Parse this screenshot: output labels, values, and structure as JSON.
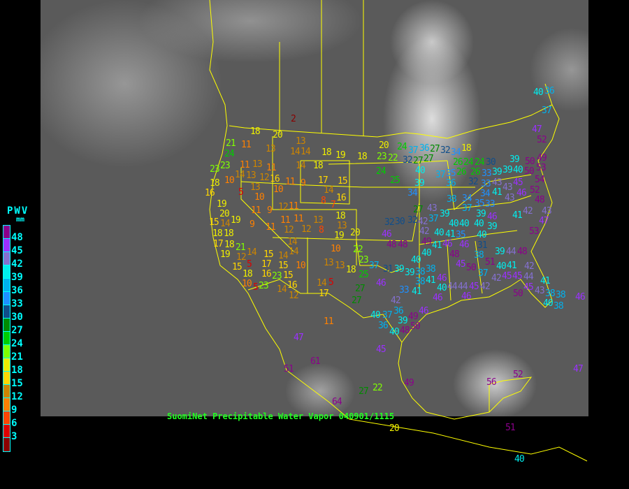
{
  "caption": "SuomiNet Precipitable Water Vapor 040901/1115",
  "legend": {
    "title": "PWV",
    "units": "mm",
    "labels": [
      "48",
      "45",
      "42",
      "39",
      "36",
      "33",
      "30",
      "27",
      "24",
      "21",
      "18",
      "15",
      "12",
      "9",
      "6",
      "3"
    ],
    "colors": [
      "#8b008b",
      "#9b30ff",
      "#8470d0",
      "#00eeee",
      "#00b2ee",
      "#1e90ff",
      "#104e8b",
      "#008b00",
      "#00cd00",
      "#7fff00",
      "#eeee00",
      "#ffd700",
      "#cd8500",
      "#ff8000",
      "#ff4500",
      "#dd0000",
      "#8b0000"
    ]
  },
  "map": {
    "background": "grayscale IR satellite",
    "overlay_line_color": "#ffff00"
  },
  "stations": [
    2,
    18,
    20,
    21,
    24,
    23,
    11,
    13,
    13,
    14,
    14,
    18,
    19,
    18,
    11,
    13,
    14,
    11,
    14,
    18,
    23,
    13,
    12,
    13,
    16,
    10,
    11,
    9,
    17,
    15,
    18,
    16,
    10,
    5,
    10,
    14,
    8,
    7,
    16,
    18,
    13,
    19,
    20,
    15,
    14,
    19,
    18,
    18,
    17,
    18,
    19,
    21,
    12,
    14,
    11,
    9,
    9,
    11,
    11,
    11,
    12,
    11,
    13,
    8,
    19,
    20,
    12,
    12,
    14,
    14,
    15,
    14,
    17,
    15,
    5,
    16,
    15,
    15,
    10,
    18,
    10,
    5,
    23,
    23,
    16,
    14,
    12,
    14,
    5,
    17,
    10,
    13,
    13,
    18,
    22,
    23,
    25,
    27,
    27,
    11,
    47,
    51,
    61,
    64,
    27,
    22,
    45,
    49,
    20,
    56,
    52,
    51,
    40,
    47,
    20,
    23,
    22,
    24,
    37,
    36,
    27,
    27,
    32,
    27,
    24,
    25,
    40,
    39,
    34,
    32,
    34,
    18,
    26,
    24,
    24,
    30,
    26,
    26,
    33,
    37,
    35,
    32,
    33,
    39,
    39,
    40,
    39,
    34,
    36,
    38,
    34,
    37,
    35,
    33,
    41,
    43,
    43,
    45,
    50,
    50,
    53,
    54,
    52,
    47,
    40,
    36,
    37,
    49,
    52,
    48,
    46,
    43,
    42,
    41,
    43,
    47,
    53,
    27,
    43,
    42,
    32,
    37,
    30,
    32,
    48,
    46,
    48,
    42,
    49,
    40,
    41,
    40,
    40,
    39,
    40,
    46,
    39,
    35,
    39,
    46,
    46,
    41,
    40,
    31,
    38,
    40,
    40,
    48,
    45,
    39,
    44,
    48,
    51,
    50,
    37,
    37,
    31,
    39,
    39,
    38,
    38,
    38,
    41,
    46,
    46,
    33,
    40,
    44,
    44,
    46,
    45,
    42,
    42,
    40,
    45,
    45,
    44,
    45,
    41,
    42,
    41,
    41,
    46,
    50,
    43,
    38,
    38,
    40,
    38,
    42,
    36,
    40,
    37,
    36,
    39,
    40,
    48,
    50,
    49,
    46,
    46,
    43
  ]
}
